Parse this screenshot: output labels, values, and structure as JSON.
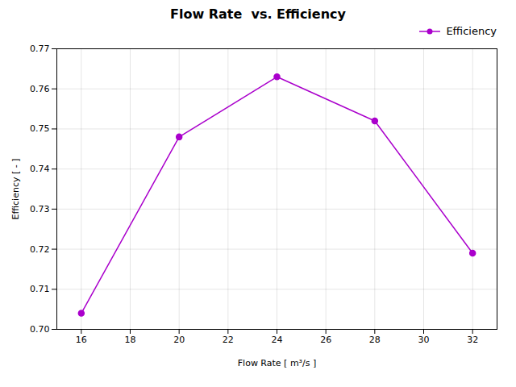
{
  "chart_data": {
    "type": "line",
    "title": "Flow Rate  vs. Efficiency",
    "xlabel": "Flow Rate [ m³/s ]",
    "ylabel": "Efficiency [ - ]",
    "x": [
      16,
      20,
      24,
      28,
      32
    ],
    "series": [
      {
        "name": "Efficiency",
        "color": "#AA00CC",
        "marker": "o",
        "values": [
          0.704,
          0.748,
          0.763,
          0.752,
          0.719
        ]
      }
    ],
    "xlim": [
      15.0,
      33.0
    ],
    "ylim": [
      0.7,
      0.77
    ],
    "xticks": [
      16,
      18,
      20,
      22,
      24,
      26,
      28,
      30,
      32
    ],
    "yticks": [
      {
        "value": 0.7,
        "label": "0.70"
      },
      0.71,
      0.72,
      0.73,
      0.74,
      0.75,
      0.76,
      0.77
    ],
    "grid": true,
    "legend": "upper right"
  }
}
